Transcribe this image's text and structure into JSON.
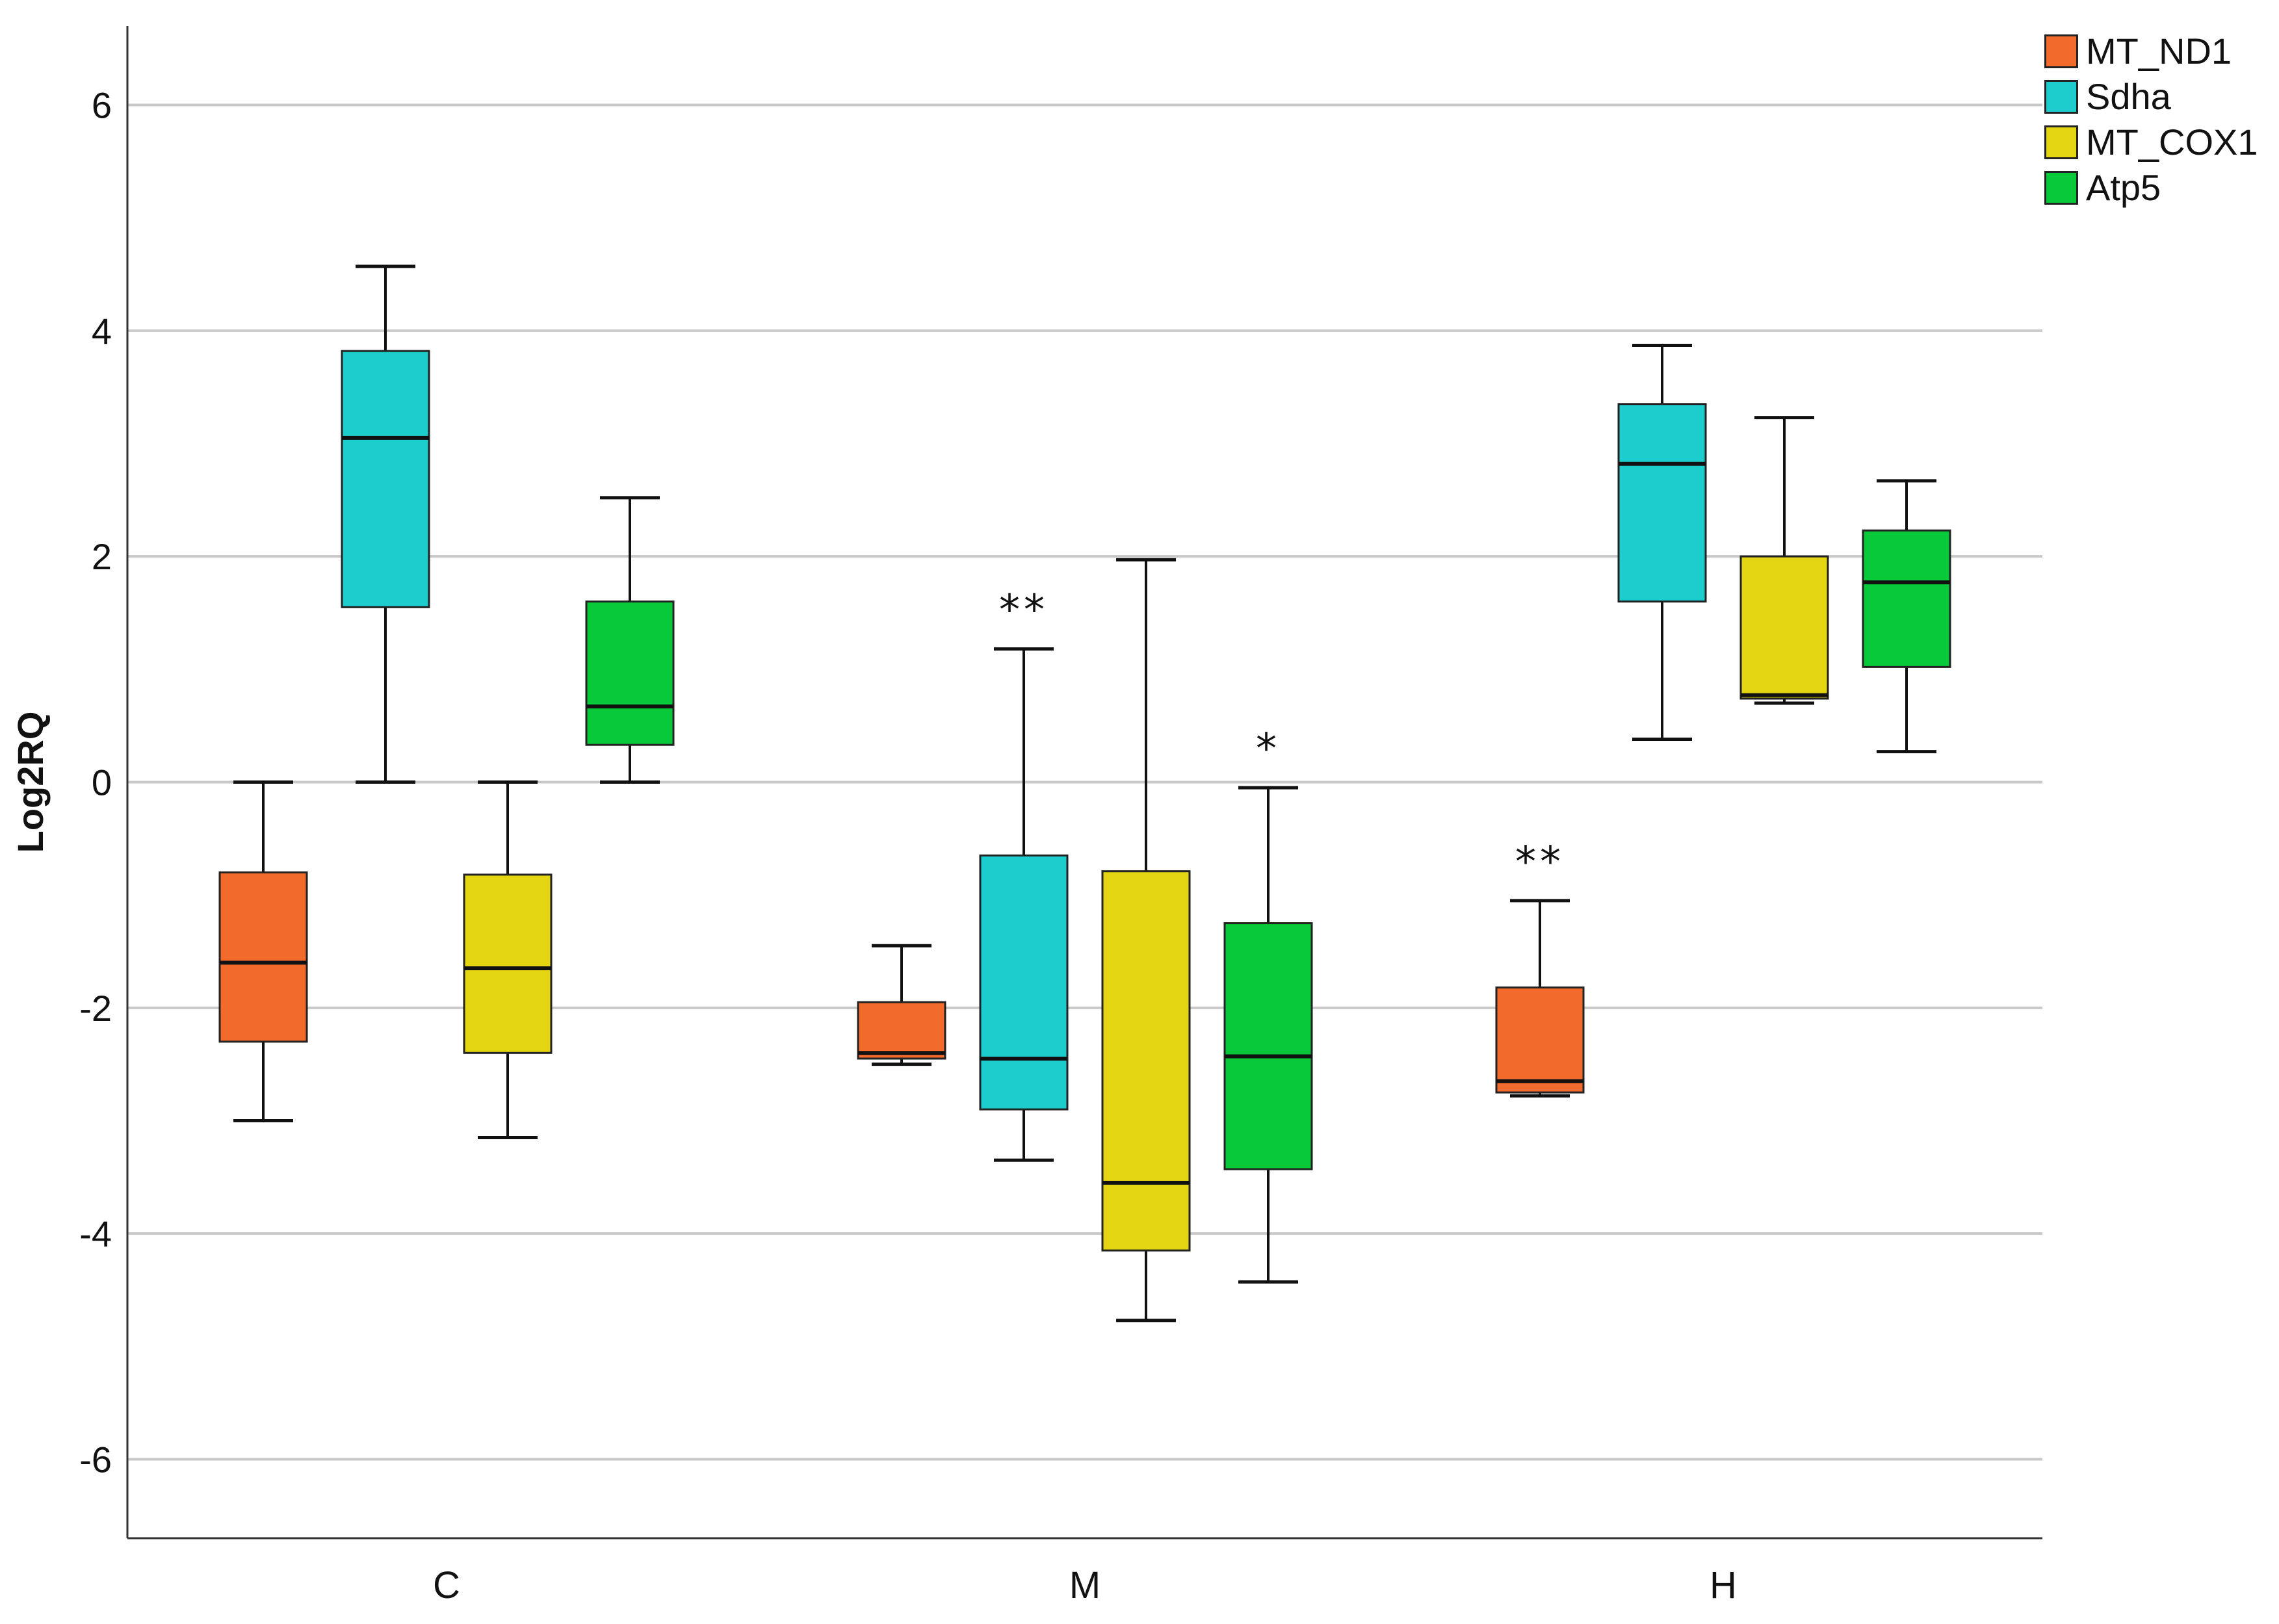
{
  "chart_data": {
    "type": "box",
    "title": "",
    "xlabel": "",
    "ylabel": "Log2RQ",
    "ylim": [
      -6.7,
      6.7
    ],
    "yticks": [
      -6,
      -4,
      -2,
      0,
      2,
      4,
      6
    ],
    "ytick_labels": [
      "-6",
      "-4",
      "-2",
      "0",
      "2",
      "4",
      "6"
    ],
    "grid": true,
    "legend_position": "top-right",
    "categories": [
      "C",
      "M",
      "H"
    ],
    "series": [
      {
        "name": "MT_ND1",
        "color": "#f26a2c",
        "boxes": [
          {
            "category": "C",
            "min": -3.0,
            "q1": -2.3,
            "median": -1.6,
            "q3": -0.8,
            "max": 0.0,
            "annotation": ""
          },
          {
            "category": "M",
            "min": -2.5,
            "q1": -2.45,
            "median": -2.4,
            "q3": -1.95,
            "max": -1.45,
            "annotation": ""
          },
          {
            "category": "H",
            "min": -2.78,
            "q1": -2.75,
            "median": -2.65,
            "q3": -1.82,
            "max": -1.05,
            "annotation": "**"
          }
        ]
      },
      {
        "name": "Sdha",
        "color": "#1dcdcd",
        "boxes": [
          {
            "category": "C",
            "min": 0.0,
            "q1": 1.55,
            "median": 3.05,
            "q3": 3.82,
            "max": 4.57,
            "annotation": ""
          },
          {
            "category": "M",
            "min": -3.35,
            "q1": -2.9,
            "median": -2.45,
            "q3": -0.65,
            "max": 1.18,
            "annotation": "**"
          },
          {
            "category": "H",
            "min": 0.38,
            "q1": 1.6,
            "median": 2.82,
            "q3": 3.35,
            "max": 3.87,
            "annotation": ""
          }
        ]
      },
      {
        "name": "MT_COX1",
        "color": "#e3d511",
        "boxes": [
          {
            "category": "C",
            "min": -3.15,
            "q1": -2.4,
            "median": -1.65,
            "q3": -0.82,
            "max": 0.0,
            "annotation": ""
          },
          {
            "category": "M",
            "min": -4.77,
            "q1": -4.15,
            "median": -3.55,
            "q3": -0.79,
            "max": 1.97,
            "annotation": ""
          },
          {
            "category": "H",
            "min": 0.7,
            "q1": 0.74,
            "median": 0.77,
            "q3": 2.0,
            "max": 3.23,
            "annotation": ""
          }
        ]
      },
      {
        "name": "Atp5",
        "color": "#08c93a",
        "boxes": [
          {
            "category": "C",
            "min": 0.0,
            "q1": 0.33,
            "median": 0.67,
            "q3": 1.6,
            "max": 2.52,
            "annotation": ""
          },
          {
            "category": "M",
            "min": -4.43,
            "q1": -3.43,
            "median": -2.43,
            "q3": -1.25,
            "max": -0.05,
            "annotation": "*"
          },
          {
            "category": "H",
            "min": 0.27,
            "q1": 1.02,
            "median": 1.77,
            "q3": 2.23,
            "max": 2.67,
            "annotation": ""
          }
        ]
      }
    ]
  }
}
